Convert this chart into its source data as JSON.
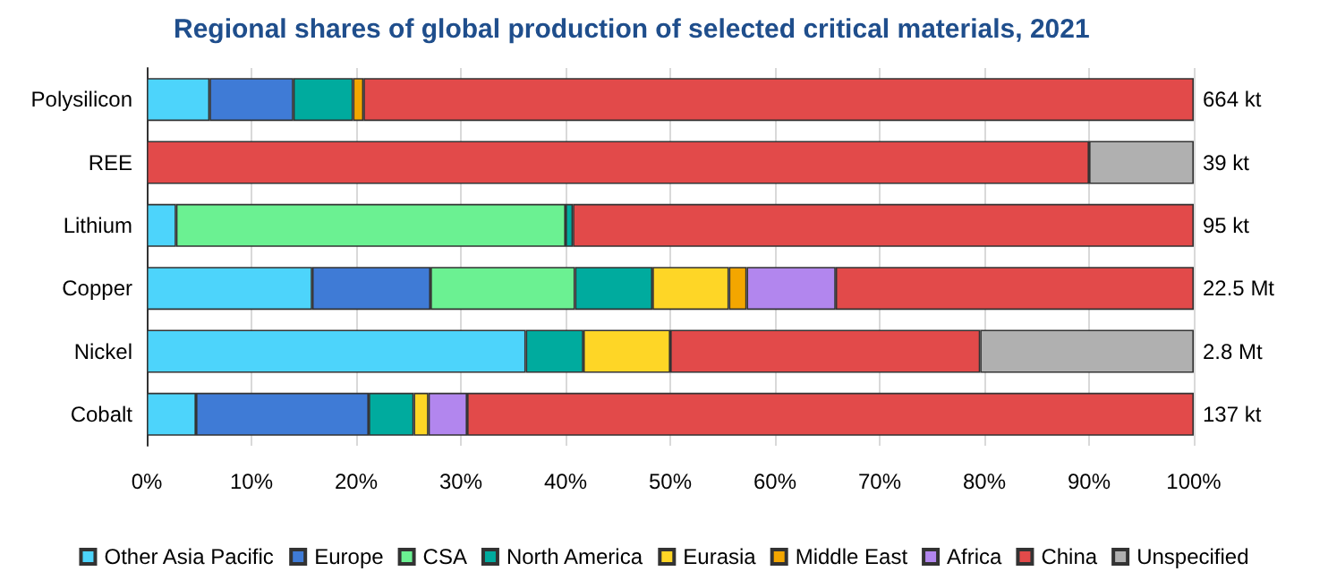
{
  "chart_data": {
    "type": "bar",
    "orientation": "horizontal",
    "stacked": true,
    "title": "Regional shares of global production of selected critical materials, 2021",
    "categories": [
      "Polysilicon",
      "REE",
      "Lithium",
      "Copper",
      "Nickel",
      "Cobalt"
    ],
    "series": [
      {
        "name": "Other Asia Pacific",
        "color": "#4dd4fb",
        "values": [
          6,
          null,
          2.8,
          15.8,
          36.2,
          4.7
        ]
      },
      {
        "name": "Europe",
        "color": "#3f7bd6",
        "values": [
          8,
          null,
          null,
          11.3,
          null,
          16.5
        ]
      },
      {
        "name": "CSA",
        "color": "#6bf192",
        "values": [
          null,
          null,
          37.2,
          13.8,
          null,
          null
        ]
      },
      {
        "name": "North America",
        "color": "#00ab9e",
        "values": [
          5.7,
          null,
          0.7,
          7.4,
          5.5,
          4.3
        ]
      },
      {
        "name": "Eurasia",
        "color": "#fed626",
        "values": [
          null,
          null,
          null,
          7.3,
          8.3,
          1.4
        ]
      },
      {
        "name": "Middle East",
        "color": "#f3a600",
        "values": [
          1,
          null,
          null,
          1.7,
          null,
          null
        ]
      },
      {
        "name": "Africa",
        "color": "#b286ee",
        "values": [
          null,
          null,
          null,
          8.5,
          null,
          3.7
        ]
      },
      {
        "name": "China",
        "color": "#e24a4a",
        "values": [
          79.3,
          90,
          59.3,
          34.2,
          29.6,
          69.4
        ]
      },
      {
        "name": "Unspecified",
        "color": "#b0b0b0",
        "values": [
          null,
          10,
          null,
          null,
          20.4,
          null
        ]
      }
    ],
    "xlim": [
      0,
      100
    ],
    "xticks": [
      {
        "value": 0,
        "label": "0%"
      },
      {
        "value": 10,
        "label": "10%"
      },
      {
        "value": 20,
        "label": "20%"
      },
      {
        "value": 30,
        "label": "30%"
      },
      {
        "value": 40,
        "label": "40%"
      },
      {
        "value": 50,
        "label": "50%"
      },
      {
        "value": 60,
        "label": "60%"
      },
      {
        "value": 70,
        "label": "70%"
      },
      {
        "value": 80,
        "label": "80%"
      },
      {
        "value": 90,
        "label": "90%"
      },
      {
        "value": 100,
        "label": "100%"
      }
    ],
    "grid": "x",
    "legend": "bottom",
    "annotations": [
      "664 kt",
      "39 kt",
      "95 kt",
      "22.5 Mt",
      "2.8 Mt",
      "137 kt"
    ]
  }
}
